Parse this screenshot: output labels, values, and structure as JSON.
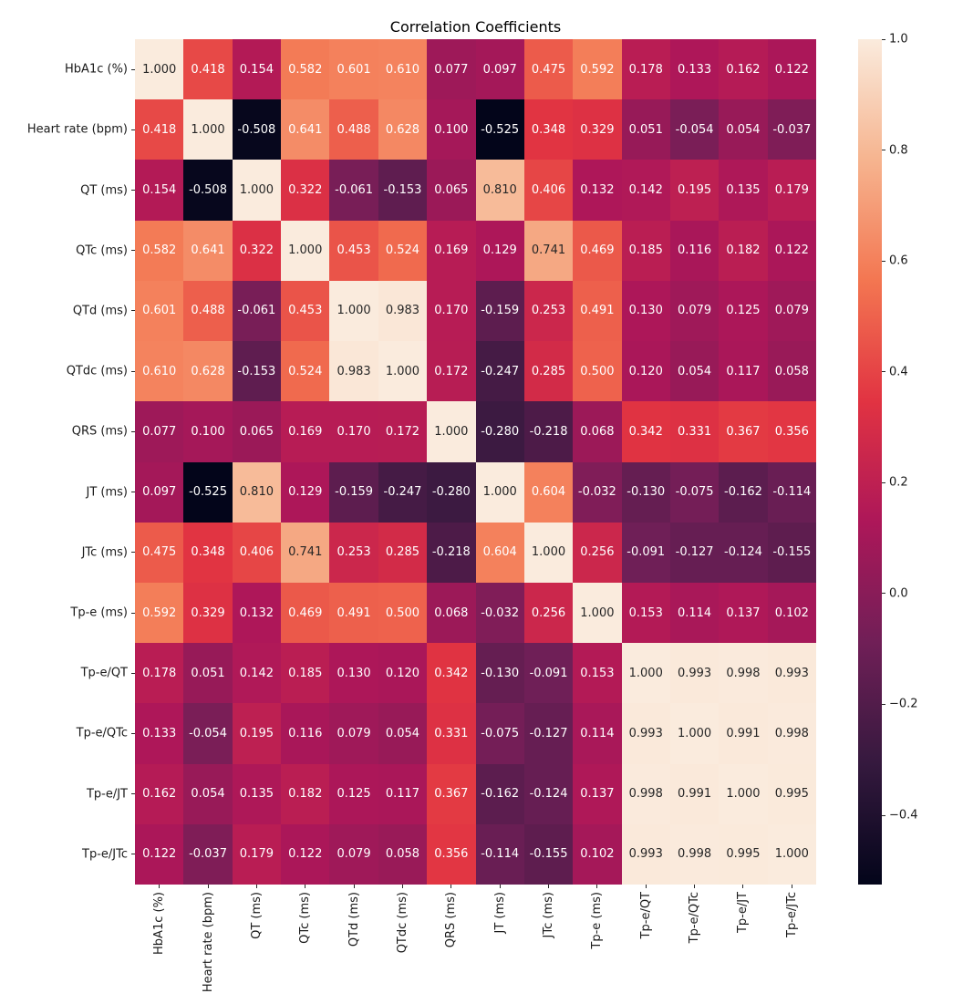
{
  "chart_data": {
    "type": "heatmap",
    "title": "Correlation Coefficients",
    "labels": [
      "HbA1c (%)",
      "Heart rate (bpm)",
      "QT (ms)",
      "QTc (ms)",
      "QTd (ms)",
      "QTdc (ms)",
      "QRS (ms)",
      "JT (ms)",
      "JTc (ms)",
      "Tp-e (ms)",
      "Tp-e/QT",
      "Tp-e/QTc",
      "Tp-e/JT",
      "Tp-e/JTc"
    ],
    "matrix": [
      [
        1.0,
        0.418,
        0.154,
        0.582,
        0.601,
        0.61,
        0.077,
        0.097,
        0.475,
        0.592,
        0.178,
        0.133,
        0.162,
        0.122
      ],
      [
        0.418,
        1.0,
        -0.508,
        0.641,
        0.488,
        0.628,
        0.1,
        -0.525,
        0.348,
        0.329,
        0.051,
        -0.054,
        0.054,
        -0.037
      ],
      [
        0.154,
        -0.508,
        1.0,
        0.322,
        -0.061,
        -0.153,
        0.065,
        0.81,
        0.406,
        0.132,
        0.142,
        0.195,
        0.135,
        0.179
      ],
      [
        0.582,
        0.641,
        0.322,
        1.0,
        0.453,
        0.524,
        0.169,
        0.129,
        0.741,
        0.469,
        0.185,
        0.116,
        0.182,
        0.122
      ],
      [
        0.601,
        0.488,
        -0.061,
        0.453,
        1.0,
        0.983,
        0.17,
        -0.159,
        0.253,
        0.491,
        0.13,
        0.079,
        0.125,
        0.079
      ],
      [
        0.61,
        0.628,
        -0.153,
        0.524,
        0.983,
        1.0,
        0.172,
        -0.247,
        0.285,
        0.5,
        0.12,
        0.054,
        0.117,
        0.058
      ],
      [
        0.077,
        0.1,
        0.065,
        0.169,
        0.17,
        0.172,
        1.0,
        -0.28,
        -0.218,
        0.068,
        0.342,
        0.331,
        0.367,
        0.356
      ],
      [
        0.097,
        -0.525,
        0.81,
        0.129,
        -0.159,
        -0.247,
        -0.28,
        1.0,
        0.604,
        -0.032,
        -0.13,
        -0.075,
        -0.162,
        -0.114
      ],
      [
        0.475,
        0.348,
        0.406,
        0.741,
        0.253,
        0.285,
        -0.218,
        0.604,
        1.0,
        0.256,
        -0.091,
        -0.127,
        -0.124,
        -0.155
      ],
      [
        0.592,
        0.329,
        0.132,
        0.469,
        0.491,
        0.5,
        0.068,
        -0.032,
        0.256,
        1.0,
        0.153,
        0.114,
        0.137,
        0.102
      ],
      [
        0.178,
        0.051,
        0.142,
        0.185,
        0.13,
        0.12,
        0.342,
        -0.13,
        -0.091,
        0.153,
        1.0,
        0.993,
        0.998,
        0.993
      ],
      [
        0.133,
        -0.054,
        0.195,
        0.116,
        0.079,
        0.054,
        0.331,
        -0.075,
        -0.127,
        0.114,
        0.993,
        1.0,
        0.991,
        0.998
      ],
      [
        0.162,
        0.054,
        0.135,
        0.182,
        0.125,
        0.117,
        0.367,
        -0.162,
        -0.124,
        0.137,
        0.998,
        0.991,
        1.0,
        0.995
      ],
      [
        0.122,
        -0.037,
        0.179,
        0.122,
        0.079,
        0.058,
        0.356,
        -0.114,
        -0.155,
        0.102,
        0.993,
        0.998,
        0.995,
        1.0
      ]
    ],
    "value_decimals": 3,
    "vmin": -0.525,
    "vmax": 1.0,
    "colormap": "rocket",
    "colormap_anchors": [
      {
        "t": 0.0,
        "hex": "#03051A"
      },
      {
        "t": 0.143,
        "hex": "#35193E"
      },
      {
        "t": 0.286,
        "hex": "#701F57"
      },
      {
        "t": 0.429,
        "hex": "#AD1759"
      },
      {
        "t": 0.571,
        "hex": "#E13342"
      },
      {
        "t": 0.714,
        "hex": "#F37651"
      },
      {
        "t": 0.857,
        "hex": "#F6B48F"
      },
      {
        "t": 1.0,
        "hex": "#FAEBDD"
      }
    ],
    "annotation_text_colors": {
      "dark": "#262626",
      "light": "#ffffff"
    },
    "colorbar_ticks": [
      "1.0",
      "0.8",
      "0.6",
      "0.4",
      "0.2",
      "0.0",
      "−0.2",
      "−0.4"
    ],
    "colorbar_tick_values": [
      1.0,
      0.8,
      0.6,
      0.4,
      0.2,
      0.0,
      -0.2,
      -0.4
    ],
    "legend_position": "right",
    "grid": false
  }
}
